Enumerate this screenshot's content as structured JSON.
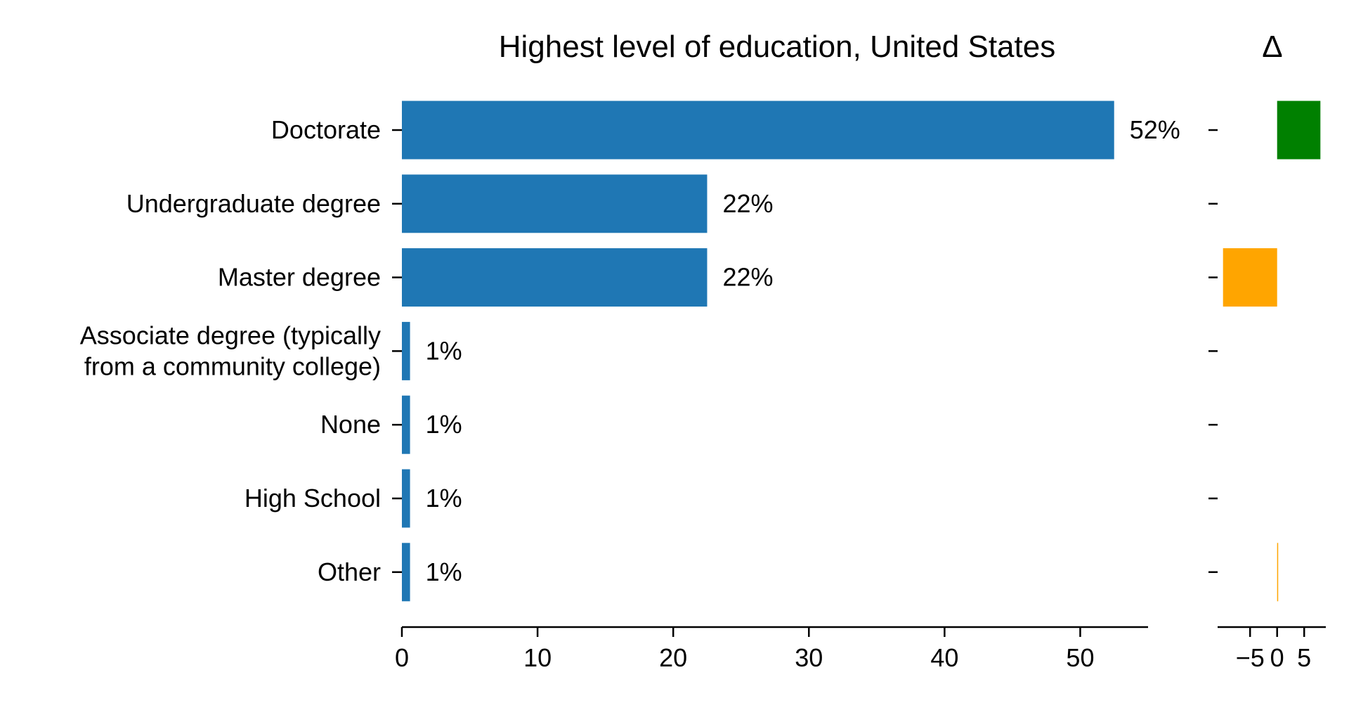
{
  "chart_data": {
    "type": "bar",
    "orientation": "horizontal",
    "title": "Highest level of education, United States",
    "delta_title": "Δ",
    "categories": [
      [
        "Doctorate"
      ],
      [
        "Undergraduate degree"
      ],
      [
        "Master degree"
      ],
      [
        "Associate degree (typically",
        "from a community college)"
      ],
      [
        "None"
      ],
      [
        "High School"
      ],
      [
        "Other"
      ]
    ],
    "values": [
      52.5,
      22.5,
      22.5,
      0.6,
      0.6,
      0.6,
      0.6
    ],
    "value_labels": [
      "52%",
      "22%",
      "22%",
      "1%",
      "1%",
      "1%",
      "1%"
    ],
    "xlim": [
      0,
      55
    ],
    "xticks": [
      0,
      10,
      20,
      30,
      40,
      50
    ],
    "bar_color": "#1f77b4",
    "delta": {
      "values": [
        8,
        0,
        -10,
        0,
        0,
        0,
        0.1
      ],
      "colors": [
        "#008000",
        "#ffa500",
        "#ffa500",
        "#ffa500",
        "#ffa500",
        "#ffa500",
        "#ffa500"
      ],
      "xlim": [
        -11,
        9
      ],
      "xticks": [
        -5,
        0,
        5
      ],
      "xtick_labels": [
        "−5",
        "0",
        "5"
      ]
    },
    "grid": false,
    "legend": "none"
  }
}
